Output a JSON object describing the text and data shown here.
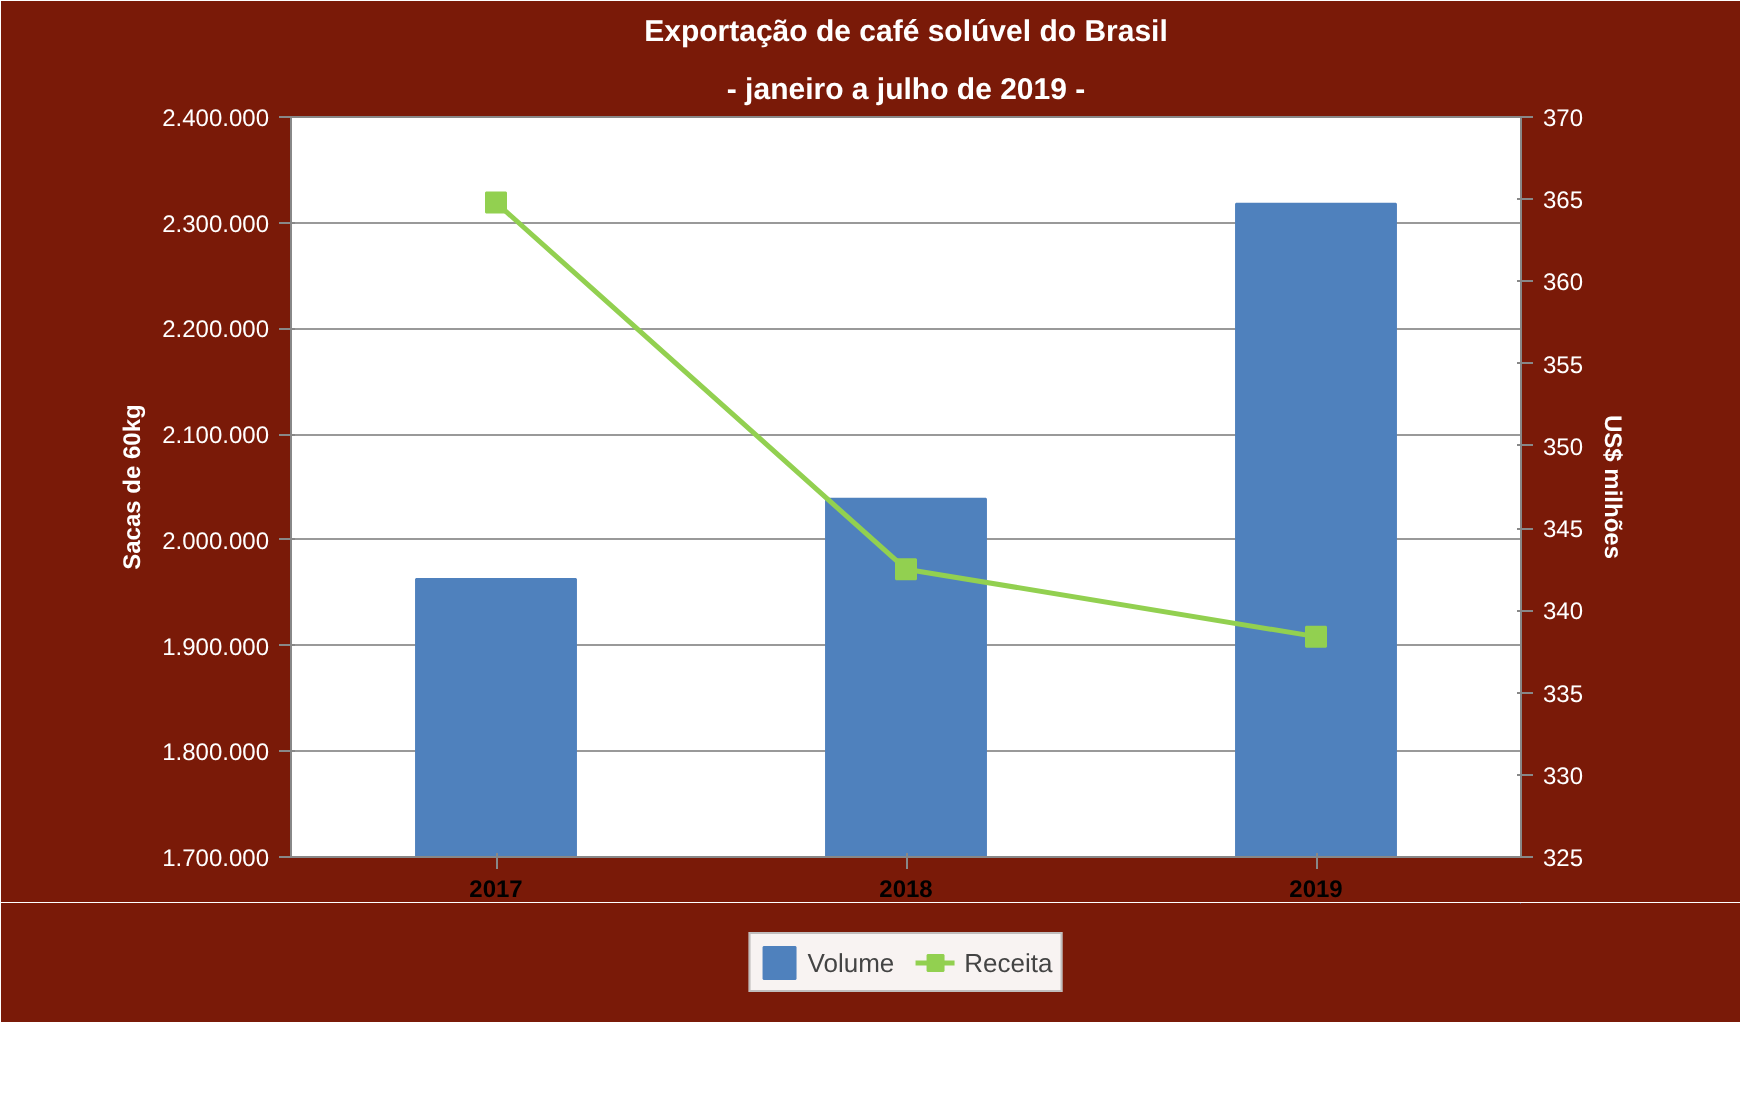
{
  "chart_data": {
    "type": "bar",
    "title": "Exportação de café solúvel do Brasil",
    "subtitle": "- janeiro a julho de 2019 -",
    "categories": [
      "2017",
      "2018",
      "2019"
    ],
    "ylabel": "Sacas de 60kg",
    "y2label": "US$ milhões",
    "series": [
      {
        "name": "Volume",
        "type": "bar",
        "color": "#4f81bd",
        "values": [
          1963000,
          2039000,
          2318000
        ]
      },
      {
        "name": "Receita",
        "type": "line",
        "color": "#92d050",
        "axis": "y2",
        "marker": "square",
        "values": [
          364.8,
          342.5,
          338.4
        ]
      }
    ],
    "ylim": [
      1700000,
      2400000
    ],
    "yticks": [
      {
        "value": 1700000,
        "label": "1.700.000"
      },
      {
        "value": 1800000,
        "label": "1.800.000"
      },
      {
        "value": 1900000,
        "label": "1.900.000"
      },
      {
        "value": 2000000,
        "label": "2.000.000"
      },
      {
        "value": 2100000,
        "label": "2.100.000"
      },
      {
        "value": 2200000,
        "label": "2.200.000"
      },
      {
        "value": 2300000,
        "label": "2.300.000"
      },
      {
        "value": 2400000,
        "label": "2.400.000"
      }
    ],
    "y2lim": [
      325,
      370
    ],
    "y2ticks": [
      325,
      330,
      335,
      340,
      345,
      350,
      355,
      360,
      365,
      370
    ],
    "grid": "y",
    "legend": "bottom"
  }
}
